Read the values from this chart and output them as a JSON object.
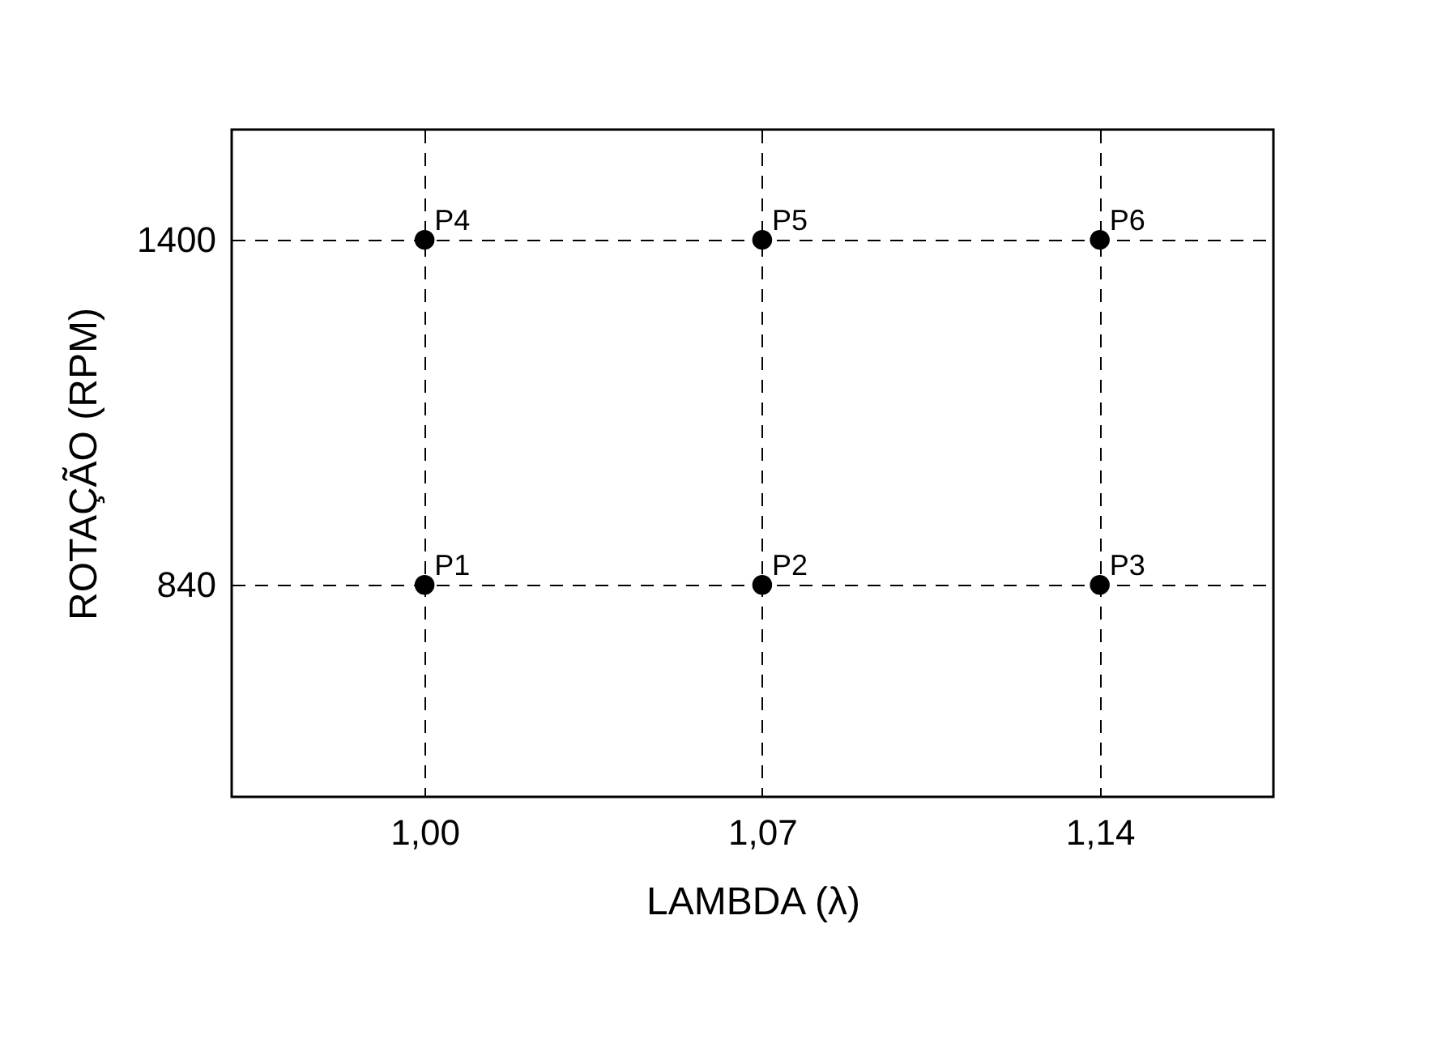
{
  "chart_data": {
    "type": "scatter",
    "xlabel": "LAMBDA (λ)",
    "ylabel": "ROTAÇÃO (RPM)",
    "x": [
      1.0,
      1.07,
      1.14,
      1.0,
      1.07,
      1.14
    ],
    "series": [
      {
        "color": "#000000",
        "values": [
          840,
          840,
          840,
          1400,
          1400,
          1400
        ]
      }
    ],
    "xlim": [
      0.96,
      1.176
    ],
    "ylim": [
      496,
      1579
    ],
    "xticks": [
      {
        "value": 1.0,
        "label": "1,00"
      },
      {
        "value": 1.07,
        "label": "1,07"
      },
      {
        "value": 1.14,
        "label": "1,14"
      }
    ],
    "yticks": [
      840,
      1400
    ],
    "grid": true,
    "marker": "circle",
    "annotations": [
      {
        "text": "P1",
        "x": 1.0,
        "y": 840
      },
      {
        "text": "P2",
        "x": 1.07,
        "y": 840
      },
      {
        "text": "P3",
        "x": 1.14,
        "y": 840
      },
      {
        "text": "P4",
        "x": 1.0,
        "y": 1400
      },
      {
        "text": "P5",
        "x": 1.07,
        "y": 1400
      },
      {
        "text": "P6",
        "x": 1.14,
        "y": 1400
      }
    ]
  }
}
